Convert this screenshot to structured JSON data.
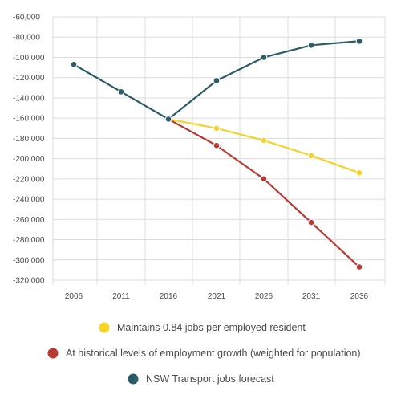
{
  "chart_data": {
    "type": "line",
    "x": [
      "2006",
      "2011",
      "2016",
      "2021",
      "2026",
      "2031",
      "2036"
    ],
    "ylim": [
      -320000,
      -60000
    ],
    "yticks": [
      -60000,
      -80000,
      -100000,
      -120000,
      -140000,
      -160000,
      -180000,
      -200000,
      -220000,
      -240000,
      -260000,
      -280000,
      -300000,
      -320000
    ],
    "ytick_labels": [
      "-60,000",
      "-80,000",
      "-100,000",
      "-120,000",
      "-140,000",
      "-160,000",
      "-180,000",
      "-200,000",
      "-220,000",
      "-240,000",
      "-260,000",
      "-280,000",
      "-300,000",
      "-320,000"
    ],
    "grid": true,
    "legend_position": "bottom",
    "series": [
      {
        "name": "Maintains 0.84 jobs per employed resident",
        "color": "#f5d327",
        "x": [
          "2016",
          "2021",
          "2026",
          "2031",
          "2036"
        ],
        "values": [
          -161000,
          -170000,
          -182000,
          -197000,
          -214000
        ]
      },
      {
        "name": "At historical levels of employment growth (weighted for population)",
        "color": "#b83a33",
        "x": [
          "2016",
          "2021",
          "2026",
          "2031",
          "2036"
        ],
        "values": [
          -161000,
          -187000,
          -220000,
          -263000,
          -307000
        ]
      },
      {
        "name": "NSW Transport jobs forecast",
        "color": "#2b5c66",
        "x": [
          "2006",
          "2011",
          "2016",
          "2021",
          "2026",
          "2031",
          "2036"
        ],
        "values": [
          -107000,
          -134000,
          -161000,
          -123000,
          -100000,
          -88000,
          -84000
        ]
      }
    ]
  }
}
